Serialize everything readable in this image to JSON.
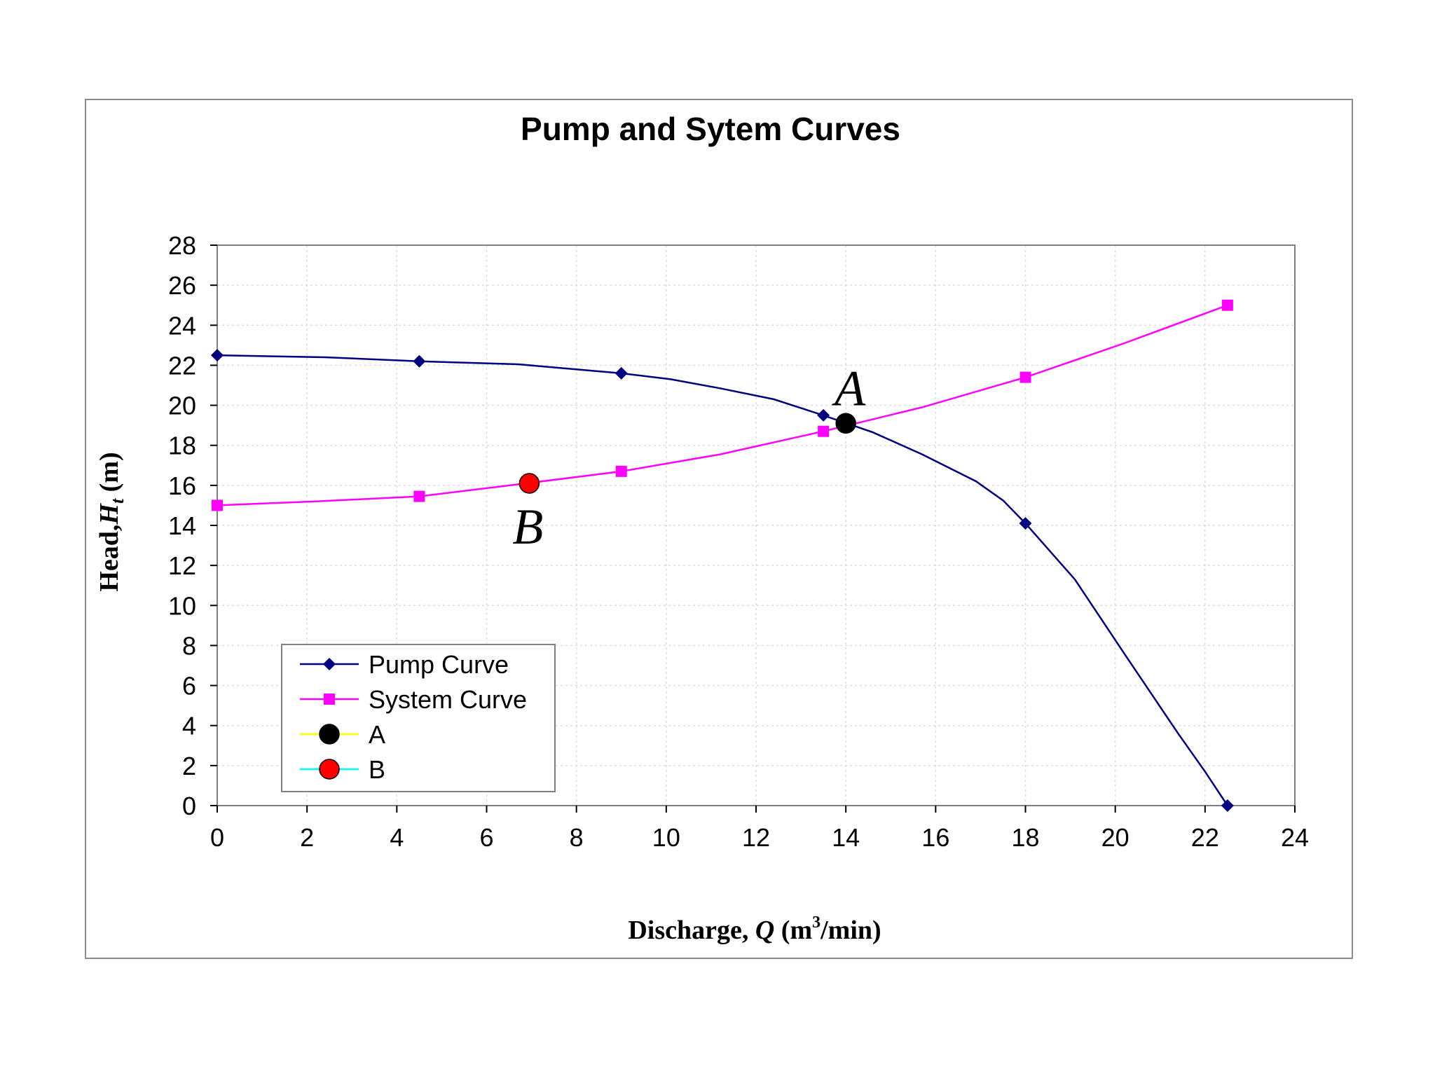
{
  "chart_data": {
    "type": "line",
    "title": "Pump and Sytem Curves",
    "xlabel": {
      "prefix": "Discharge, ",
      "symbol": "Q",
      "unit_open": " (m",
      "unit_sup": "3",
      "unit_close": "/min)"
    },
    "ylabel": {
      "prefix": "Head,",
      "symbol": "H",
      "subscript": "t",
      "unit": " (m)"
    },
    "xlim": [
      0,
      24
    ],
    "ylim": [
      0,
      28
    ],
    "xticks": [
      0,
      2,
      4,
      6,
      8,
      10,
      12,
      14,
      16,
      18,
      20,
      22,
      24
    ],
    "yticks": [
      0,
      2,
      4,
      6,
      8,
      10,
      12,
      14,
      16,
      18,
      20,
      22,
      24,
      26,
      28
    ],
    "grid": true,
    "legend_position": "lower-left",
    "series": [
      {
        "name": "Pump Curve",
        "color": "#000080",
        "marker": "diamond",
        "points": [
          [
            0,
            22.5
          ],
          [
            4.5,
            22.2
          ],
          [
            9,
            21.6
          ],
          [
            13.5,
            19.5
          ],
          [
            18,
            14.1
          ],
          [
            22.5,
            0
          ]
        ],
        "curve": [
          [
            0,
            22.5
          ],
          [
            2.4,
            22.4
          ],
          [
            4.5,
            22.2
          ],
          [
            6.7,
            22.05
          ],
          [
            9,
            21.6
          ],
          [
            10.1,
            21.3
          ],
          [
            11.2,
            20.85
          ],
          [
            12.4,
            20.3
          ],
          [
            13.5,
            19.5
          ],
          [
            14.6,
            18.65
          ],
          [
            15.7,
            17.55
          ],
          [
            16.9,
            16.2
          ],
          [
            17.5,
            15.25
          ],
          [
            18,
            14.1
          ],
          [
            19.1,
            11.3
          ],
          [
            20.2,
            7.6
          ],
          [
            21.4,
            3.6
          ],
          [
            22,
            1.7
          ],
          [
            22.5,
            0
          ]
        ]
      },
      {
        "name": "System Curve",
        "color": "#FF00FF",
        "marker": "square",
        "points": [
          [
            0,
            15
          ],
          [
            4.5,
            15.45
          ],
          [
            9,
            16.7
          ],
          [
            13.5,
            18.7
          ],
          [
            18,
            21.4
          ],
          [
            22.5,
            25
          ]
        ],
        "curve": [
          [
            0,
            15
          ],
          [
            2.2,
            15.2
          ],
          [
            4.5,
            15.45
          ],
          [
            6.7,
            16.05
          ],
          [
            9,
            16.7
          ],
          [
            11.2,
            17.55
          ],
          [
            13.5,
            18.7
          ],
          [
            15.7,
            19.9
          ],
          [
            18,
            21.4
          ],
          [
            20.2,
            23.1
          ],
          [
            22.5,
            25
          ]
        ]
      },
      {
        "name": "A",
        "color": "#FFFF00",
        "marker_color": "#000000",
        "marker": "circle",
        "points": [
          [
            14,
            19.1
          ]
        ]
      },
      {
        "name": "B",
        "color": "#00FFFF",
        "marker_color": "#FF0000",
        "marker": "circle",
        "points": [
          [
            6.95,
            16.1
          ]
        ]
      }
    ],
    "annotations": [
      {
        "text": "A",
        "x": 14,
        "y": 19.1
      },
      {
        "text": "B",
        "x": 6.95,
        "y": 16.1
      }
    ]
  }
}
